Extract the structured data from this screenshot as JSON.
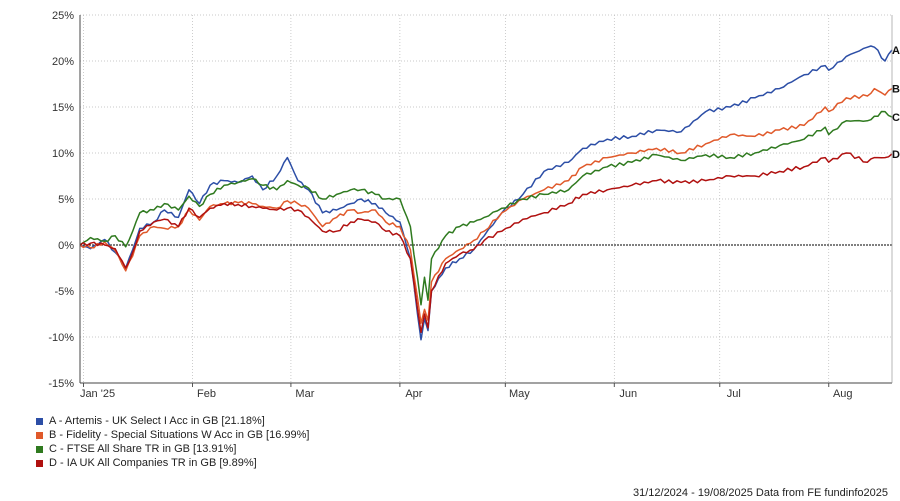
{
  "chart_data": {
    "type": "line",
    "ylim": [
      -15,
      25
    ],
    "yticks": [
      -15,
      -10,
      -5,
      0,
      5,
      10,
      15,
      20,
      25
    ],
    "ytick_labels": [
      "-15%",
      "-10%",
      "-5%",
      "0%",
      "5%",
      "10%",
      "15%",
      "20%",
      "25%"
    ],
    "xlim": [
      "2024-12-31",
      "2025-08-19"
    ],
    "xticks": [
      {
        "date": "2025-01-01",
        "label": "Jan '25"
      },
      {
        "date": "2025-02-01",
        "label": "Feb"
      },
      {
        "date": "2025-03-01",
        "label": "Mar"
      },
      {
        "date": "2025-04-01",
        "label": "Apr"
      },
      {
        "date": "2025-05-01",
        "label": "May"
      },
      {
        "date": "2025-06-01",
        "label": "Jun"
      },
      {
        "date": "2025-07-01",
        "label": "Jul"
      },
      {
        "date": "2025-08-01",
        "label": "Aug"
      }
    ],
    "grid": true,
    "legend_position": "bottom-left",
    "series": [
      {
        "name": "A - Artemis - UK Select I Acc in GB [21.18%]",
        "end_label": "A",
        "color": "#2c4ea6",
        "points": [
          [
            "2024-12-31",
            0
          ],
          [
            "2025-01-03",
            -0.4
          ],
          [
            "2025-01-07",
            0.6
          ],
          [
            "2025-01-10",
            -0.8
          ],
          [
            "2025-01-13",
            -2.5
          ],
          [
            "2025-01-15",
            -0.5
          ],
          [
            "2025-01-17",
            1.8
          ],
          [
            "2025-01-21",
            2.5
          ],
          [
            "2025-01-24",
            3.8
          ],
          [
            "2025-01-28",
            3.0
          ],
          [
            "2025-01-31",
            6.0
          ],
          [
            "2025-02-03",
            4.5
          ],
          [
            "2025-02-06",
            6.5
          ],
          [
            "2025-02-10",
            7.0
          ],
          [
            "2025-02-14",
            6.8
          ],
          [
            "2025-02-18",
            7.5
          ],
          [
            "2025-02-21",
            6.0
          ],
          [
            "2025-02-25",
            7.5
          ],
          [
            "2025-02-28",
            9.5
          ],
          [
            "2025-03-03",
            7.0
          ],
          [
            "2025-03-06",
            6.0
          ],
          [
            "2025-03-10",
            3.5
          ],
          [
            "2025-03-14",
            3.8
          ],
          [
            "2025-03-18",
            4.5
          ],
          [
            "2025-03-21",
            5.0
          ],
          [
            "2025-03-25",
            4.5
          ],
          [
            "2025-03-28",
            3.5
          ],
          [
            "2025-04-01",
            2.5
          ],
          [
            "2025-04-04",
            -1.5
          ],
          [
            "2025-04-07",
            -10.3
          ],
          [
            "2025-04-08",
            -8.0
          ],
          [
            "2025-04-09",
            -9.3
          ],
          [
            "2025-04-10",
            -5.0
          ],
          [
            "2025-04-14",
            -2.5
          ],
          [
            "2025-04-18",
            -1.5
          ],
          [
            "2025-04-22",
            -0.5
          ],
          [
            "2025-04-25",
            1.0
          ],
          [
            "2025-04-30",
            3.5
          ],
          [
            "2025-05-06",
            5.5
          ],
          [
            "2025-05-12",
            8.0
          ],
          [
            "2025-05-19",
            9.0
          ],
          [
            "2025-05-23",
            10.5
          ],
          [
            "2025-05-30",
            11.5
          ],
          [
            "2025-06-06",
            11.8
          ],
          [
            "2025-06-13",
            12.5
          ],
          [
            "2025-06-20",
            12.3
          ],
          [
            "2025-06-27",
            14.5
          ],
          [
            "2025-07-04",
            15.0
          ],
          [
            "2025-07-11",
            16.0
          ],
          [
            "2025-07-18",
            17.0
          ],
          [
            "2025-07-25",
            18.5
          ],
          [
            "2025-07-31",
            19.5
          ],
          [
            "2025-08-01",
            19.0
          ],
          [
            "2025-08-06",
            20.5
          ],
          [
            "2025-08-12",
            21.5
          ],
          [
            "2025-08-14",
            21.5
          ],
          [
            "2025-08-17",
            20.0
          ],
          [
            "2025-08-19",
            21.2
          ]
        ]
      },
      {
        "name": "B - Fidelity - Special Situations W Acc in GB [16.99%]",
        "end_label": "B",
        "color": "#e0592a",
        "points": [
          [
            "2024-12-31",
            0
          ],
          [
            "2025-01-03",
            -0.3
          ],
          [
            "2025-01-07",
            0.3
          ],
          [
            "2025-01-10",
            -0.6
          ],
          [
            "2025-01-13",
            -2.8
          ],
          [
            "2025-01-15",
            -1.2
          ],
          [
            "2025-01-17",
            1.0
          ],
          [
            "2025-01-21",
            2.0
          ],
          [
            "2025-01-24",
            1.8
          ],
          [
            "2025-01-28",
            2.0
          ],
          [
            "2025-01-31",
            3.8
          ],
          [
            "2025-02-03",
            2.7
          ],
          [
            "2025-02-06",
            4.2
          ],
          [
            "2025-02-10",
            4.5
          ],
          [
            "2025-02-14",
            4.6
          ],
          [
            "2025-02-18",
            4.5
          ],
          [
            "2025-02-21",
            4.2
          ],
          [
            "2025-02-25",
            4.0
          ],
          [
            "2025-02-28",
            4.8
          ],
          [
            "2025-03-03",
            4.5
          ],
          [
            "2025-03-06",
            4.0
          ],
          [
            "2025-03-10",
            2.0
          ],
          [
            "2025-03-14",
            3.0
          ],
          [
            "2025-03-18",
            3.8
          ],
          [
            "2025-03-21",
            3.5
          ],
          [
            "2025-03-25",
            3.8
          ],
          [
            "2025-03-28",
            2.5
          ],
          [
            "2025-04-01",
            2.0
          ],
          [
            "2025-04-04",
            -0.5
          ],
          [
            "2025-04-07",
            -8.5
          ],
          [
            "2025-04-08",
            -7.0
          ],
          [
            "2025-04-09",
            -8.2
          ],
          [
            "2025-04-10",
            -4.0
          ],
          [
            "2025-04-14",
            -1.5
          ],
          [
            "2025-04-18",
            -0.5
          ],
          [
            "2025-04-22",
            0.5
          ],
          [
            "2025-04-25",
            1.5
          ],
          [
            "2025-04-30",
            3.5
          ],
          [
            "2025-05-06",
            5.0
          ],
          [
            "2025-05-12",
            6.0
          ],
          [
            "2025-05-19",
            7.0
          ],
          [
            "2025-05-23",
            8.5
          ],
          [
            "2025-05-30",
            9.5
          ],
          [
            "2025-06-06",
            10.0
          ],
          [
            "2025-06-13",
            10.5
          ],
          [
            "2025-06-20",
            10.0
          ],
          [
            "2025-06-27",
            11.0
          ],
          [
            "2025-07-04",
            12.0
          ],
          [
            "2025-07-11",
            11.8
          ],
          [
            "2025-07-18",
            12.5
          ],
          [
            "2025-07-25",
            13.0
          ],
          [
            "2025-07-31",
            15.0
          ],
          [
            "2025-08-01",
            14.5
          ],
          [
            "2025-08-06",
            16.0
          ],
          [
            "2025-08-12",
            16.2
          ],
          [
            "2025-08-14",
            17.0
          ],
          [
            "2025-08-17",
            16.3
          ],
          [
            "2025-08-19",
            17.0
          ]
        ]
      },
      {
        "name": "C - FTSE All Share TR in GB [13.91%]",
        "end_label": "C",
        "color": "#2f7a1f",
        "points": [
          [
            "2024-12-31",
            0
          ],
          [
            "2025-01-03",
            0.8
          ],
          [
            "2025-01-07",
            0.4
          ],
          [
            "2025-01-10",
            1.0
          ],
          [
            "2025-01-13",
            -0.2
          ],
          [
            "2025-01-15",
            1.5
          ],
          [
            "2025-01-17",
            3.5
          ],
          [
            "2025-01-21",
            3.8
          ],
          [
            "2025-01-24",
            4.5
          ],
          [
            "2025-01-28",
            3.8
          ],
          [
            "2025-01-31",
            5.3
          ],
          [
            "2025-02-03",
            4.2
          ],
          [
            "2025-02-06",
            5.5
          ],
          [
            "2025-02-10",
            6.5
          ],
          [
            "2025-02-14",
            6.8
          ],
          [
            "2025-02-18",
            7.2
          ],
          [
            "2025-02-21",
            6.5
          ],
          [
            "2025-02-25",
            6.0
          ],
          [
            "2025-02-28",
            7.0
          ],
          [
            "2025-03-03",
            6.5
          ],
          [
            "2025-03-06",
            6.2
          ],
          [
            "2025-03-10",
            5.0
          ],
          [
            "2025-03-14",
            5.5
          ],
          [
            "2025-03-18",
            6.0
          ],
          [
            "2025-03-21",
            6.0
          ],
          [
            "2025-03-25",
            5.5
          ],
          [
            "2025-03-28",
            5.0
          ],
          [
            "2025-04-01",
            5.0
          ],
          [
            "2025-04-04",
            2.0
          ],
          [
            "2025-04-07",
            -6.5
          ],
          [
            "2025-04-08",
            -3.5
          ],
          [
            "2025-04-09",
            -6.0
          ],
          [
            "2025-04-10",
            -1.5
          ],
          [
            "2025-04-14",
            1.0
          ],
          [
            "2025-04-18",
            2.0
          ],
          [
            "2025-04-22",
            2.5
          ],
          [
            "2025-04-25",
            3.0
          ],
          [
            "2025-04-30",
            4.0
          ],
          [
            "2025-05-06",
            5.0
          ],
          [
            "2025-05-12",
            5.5
          ],
          [
            "2025-05-19",
            6.0
          ],
          [
            "2025-05-23",
            7.5
          ],
          [
            "2025-05-30",
            8.5
          ],
          [
            "2025-06-06",
            9.0
          ],
          [
            "2025-06-13",
            9.8
          ],
          [
            "2025-06-20",
            9.2
          ],
          [
            "2025-06-27",
            9.8
          ],
          [
            "2025-07-04",
            9.5
          ],
          [
            "2025-07-11",
            10.0
          ],
          [
            "2025-07-18",
            10.8
          ],
          [
            "2025-07-25",
            11.5
          ],
          [
            "2025-07-31",
            12.8
          ],
          [
            "2025-08-01",
            12.0
          ],
          [
            "2025-08-06",
            13.5
          ],
          [
            "2025-08-12",
            13.5
          ],
          [
            "2025-08-14",
            14.0
          ],
          [
            "2025-08-17",
            14.5
          ],
          [
            "2025-08-19",
            13.9
          ]
        ]
      },
      {
        "name": "D - IA UK All Companies TR in GB [9.89%]",
        "end_label": "D",
        "color": "#b0100f",
        "points": [
          [
            "2024-12-31",
            0
          ],
          [
            "2025-01-03",
            0.2
          ],
          [
            "2025-01-07",
            0.0
          ],
          [
            "2025-01-10",
            -0.4
          ],
          [
            "2025-01-13",
            -2.5
          ],
          [
            "2025-01-15",
            -0.8
          ],
          [
            "2025-01-17",
            1.5
          ],
          [
            "2025-01-21",
            2.5
          ],
          [
            "2025-01-24",
            2.8
          ],
          [
            "2025-01-28",
            2.0
          ],
          [
            "2025-01-31",
            4.0
          ],
          [
            "2025-02-03",
            3.0
          ],
          [
            "2025-02-06",
            4.0
          ],
          [
            "2025-02-10",
            4.5
          ],
          [
            "2025-02-14",
            4.4
          ],
          [
            "2025-02-18",
            4.2
          ],
          [
            "2025-02-21",
            4.0
          ],
          [
            "2025-02-25",
            3.8
          ],
          [
            "2025-02-28",
            4.0
          ],
          [
            "2025-03-03",
            3.8
          ],
          [
            "2025-03-06",
            3.0
          ],
          [
            "2025-03-10",
            1.5
          ],
          [
            "2025-03-14",
            1.5
          ],
          [
            "2025-03-18",
            2.5
          ],
          [
            "2025-03-21",
            2.8
          ],
          [
            "2025-03-25",
            2.5
          ],
          [
            "2025-03-28",
            1.5
          ],
          [
            "2025-04-01",
            1.0
          ],
          [
            "2025-04-04",
            -1.5
          ],
          [
            "2025-04-07",
            -9.5
          ],
          [
            "2025-04-08",
            -7.5
          ],
          [
            "2025-04-09",
            -9.0
          ],
          [
            "2025-04-10",
            -5.0
          ],
          [
            "2025-04-14",
            -2.0
          ],
          [
            "2025-04-18",
            -1.0
          ],
          [
            "2025-04-22",
            -0.5
          ],
          [
            "2025-04-25",
            0.5
          ],
          [
            "2025-04-30",
            1.5
          ],
          [
            "2025-05-06",
            2.8
          ],
          [
            "2025-05-12",
            3.5
          ],
          [
            "2025-05-19",
            4.5
          ],
          [
            "2025-05-23",
            5.5
          ],
          [
            "2025-05-30",
            6.0
          ],
          [
            "2025-06-06",
            6.5
          ],
          [
            "2025-06-13",
            7.0
          ],
          [
            "2025-06-20",
            6.8
          ],
          [
            "2025-06-27",
            7.0
          ],
          [
            "2025-07-04",
            7.5
          ],
          [
            "2025-07-11",
            7.5
          ],
          [
            "2025-07-18",
            8.0
          ],
          [
            "2025-07-25",
            8.5
          ],
          [
            "2025-07-31",
            9.5
          ],
          [
            "2025-08-01",
            9.0
          ],
          [
            "2025-08-06",
            10.0
          ],
          [
            "2025-08-12",
            9.0
          ],
          [
            "2025-08-14",
            9.5
          ],
          [
            "2025-08-17",
            9.5
          ],
          [
            "2025-08-19",
            9.9
          ]
        ]
      }
    ]
  },
  "footer": {
    "text": "31/12/2024 - 19/08/2025 Data from FE fundinfo2025"
  }
}
